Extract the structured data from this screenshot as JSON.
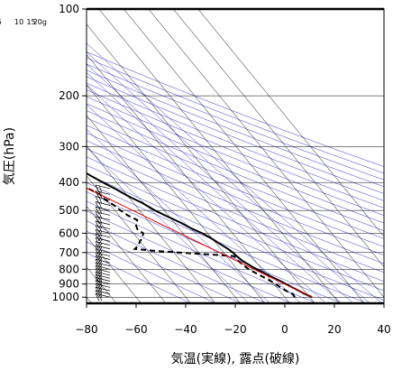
{
  "chart_data": {
    "type": "line",
    "title": "",
    "xlabel": "気温(実線), 露点(破線)",
    "ylabel": "気圧(hPa)",
    "xlim": [
      -80,
      40
    ],
    "ylim": [
      1050,
      100
    ],
    "y_scale": "log",
    "x_ticks": [
      -80,
      -60,
      -40,
      -20,
      0,
      20,
      40
    ],
    "x_tick_labels": [
      "−80",
      "−60",
      "−40",
      "−20",
      "0",
      "20",
      "40"
    ],
    "y_ticks": [
      100,
      200,
      300,
      400,
      500,
      600,
      700,
      800,
      900,
      1000
    ],
    "y_tick_labels": [
      "100",
      "200",
      "300",
      "400",
      "500",
      "600",
      "700",
      "800",
      "900",
      "1000"
    ],
    "isotherm_skew_deg_per_decade": 95,
    "mixing_ratio_labels": [
      {
        "text": "1",
        "g": 1
      },
      {
        "text": "5",
        "g": 5
      },
      {
        "text": "10",
        "g": 10
      },
      {
        "text": "15",
        "g": 15
      },
      {
        "text": "20g",
        "g": 20
      }
    ],
    "series": [
      {
        "style": "solid-black",
        "pressure": [
          1000,
          975,
          950,
          925,
          900,
          875,
          850,
          800,
          750,
          720,
          700,
          680,
          650,
          620,
          600,
          580,
          550,
          520,
          500,
          470,
          450,
          420,
          400,
          380,
          350,
          330,
          300,
          280,
          260,
          240,
          220,
          200,
          180,
          160,
          140,
          130,
          120,
          110,
          105,
          100
        ],
        "temperature": [
          11,
          9.2,
          7.8,
          6.2,
          4.8,
          3.2,
          1.4,
          -2.2,
          -5.0,
          -5.9,
          -6.2,
          -7.0,
          -8.8,
          -10.5,
          -12.3,
          -14.7,
          -17.6,
          -21.3,
          -23.8,
          -26.5,
          -29.4,
          -32.8,
          -35.5,
          -38.1,
          -42.0,
          -45.1,
          -49.4,
          -51.8,
          -53.6,
          -54.6,
          -55.3,
          -56.6,
          -58.0,
          -58.6,
          -58.8,
          -57.8,
          -55.3,
          -55.4,
          -54.2,
          -53.4
        ]
      },
      {
        "style": "dashed-black",
        "pressure": [
          1000,
          975,
          950,
          925,
          900,
          875,
          850,
          800,
          750,
          720,
          700,
          690,
          680,
          660,
          640,
          620,
          600,
          580,
          560,
          540,
          520,
          500,
          480,
          460,
          440,
          420,
          400,
          380,
          375
        ],
        "temperature": [
          4.0,
          4.3,
          2.6,
          1.6,
          0.6,
          -0.6,
          -2.1,
          -5.4,
          -6.8,
          -7.0,
          -27.8,
          -37.7,
          -44.6,
          -41.8,
          -40.1,
          -37.6,
          -36.1,
          -37.1,
          -36.2,
          -34.1,
          -36.4,
          -37.7,
          -38.6,
          -40.2,
          -40.8,
          -43.4,
          -45.6,
          -48.8,
          -83.0
        ]
      },
      {
        "style": "thin-red",
        "pressure": [
          1000,
          950,
          900,
          850,
          800,
          750,
          700,
          650,
          600,
          550,
          500,
          450,
          400,
          350,
          300,
          250,
          200
        ],
        "temperature": [
          11,
          7.7,
          4.2,
          0.6,
          -3.2,
          -7.3,
          -11.6,
          -16.3,
          -21.3,
          -26.8,
          -32.8,
          -39.4,
          -46.9,
          -55.5,
          -65.5,
          -77.8,
          -92.2
        ]
      }
    ],
    "wind_barbs": [
      {
        "pressure": 420,
        "shape": "barb"
      },
      {
        "pressure": 440,
        "shape": "barb"
      },
      {
        "pressure": 460,
        "shape": "barb"
      },
      {
        "pressure": 480,
        "shape": "barb"
      },
      {
        "pressure": 500,
        "shape": "barb"
      },
      {
        "pressure": 520,
        "shape": "barb"
      },
      {
        "pressure": 540,
        "shape": "barb"
      },
      {
        "pressure": 560,
        "shape": "barb"
      },
      {
        "pressure": 580,
        "shape": "barb"
      },
      {
        "pressure": 600,
        "shape": "barb"
      },
      {
        "pressure": 620,
        "shape": "barb"
      },
      {
        "pressure": 640,
        "shape": "barb"
      },
      {
        "pressure": 660,
        "shape": "barb"
      },
      {
        "pressure": 680,
        "shape": "barb"
      },
      {
        "pressure": 700,
        "shape": "barb"
      },
      {
        "pressure": 720,
        "shape": "barb"
      },
      {
        "pressure": 740,
        "shape": "barb"
      },
      {
        "pressure": 760,
        "shape": "barb"
      },
      {
        "pressure": 780,
        "shape": "barb"
      },
      {
        "pressure": 800,
        "shape": "barb"
      },
      {
        "pressure": 820,
        "shape": "barb"
      },
      {
        "pressure": 840,
        "shape": "barb"
      },
      {
        "pressure": 860,
        "shape": "barb"
      },
      {
        "pressure": 880,
        "shape": "barb"
      },
      {
        "pressure": 900,
        "shape": "barb"
      },
      {
        "pressure": 925,
        "shape": "barb"
      },
      {
        "pressure": 950,
        "shape": "barb"
      },
      {
        "pressure": 975,
        "shape": "barb"
      },
      {
        "pressure": 1000,
        "shape": "barb"
      }
    ]
  }
}
